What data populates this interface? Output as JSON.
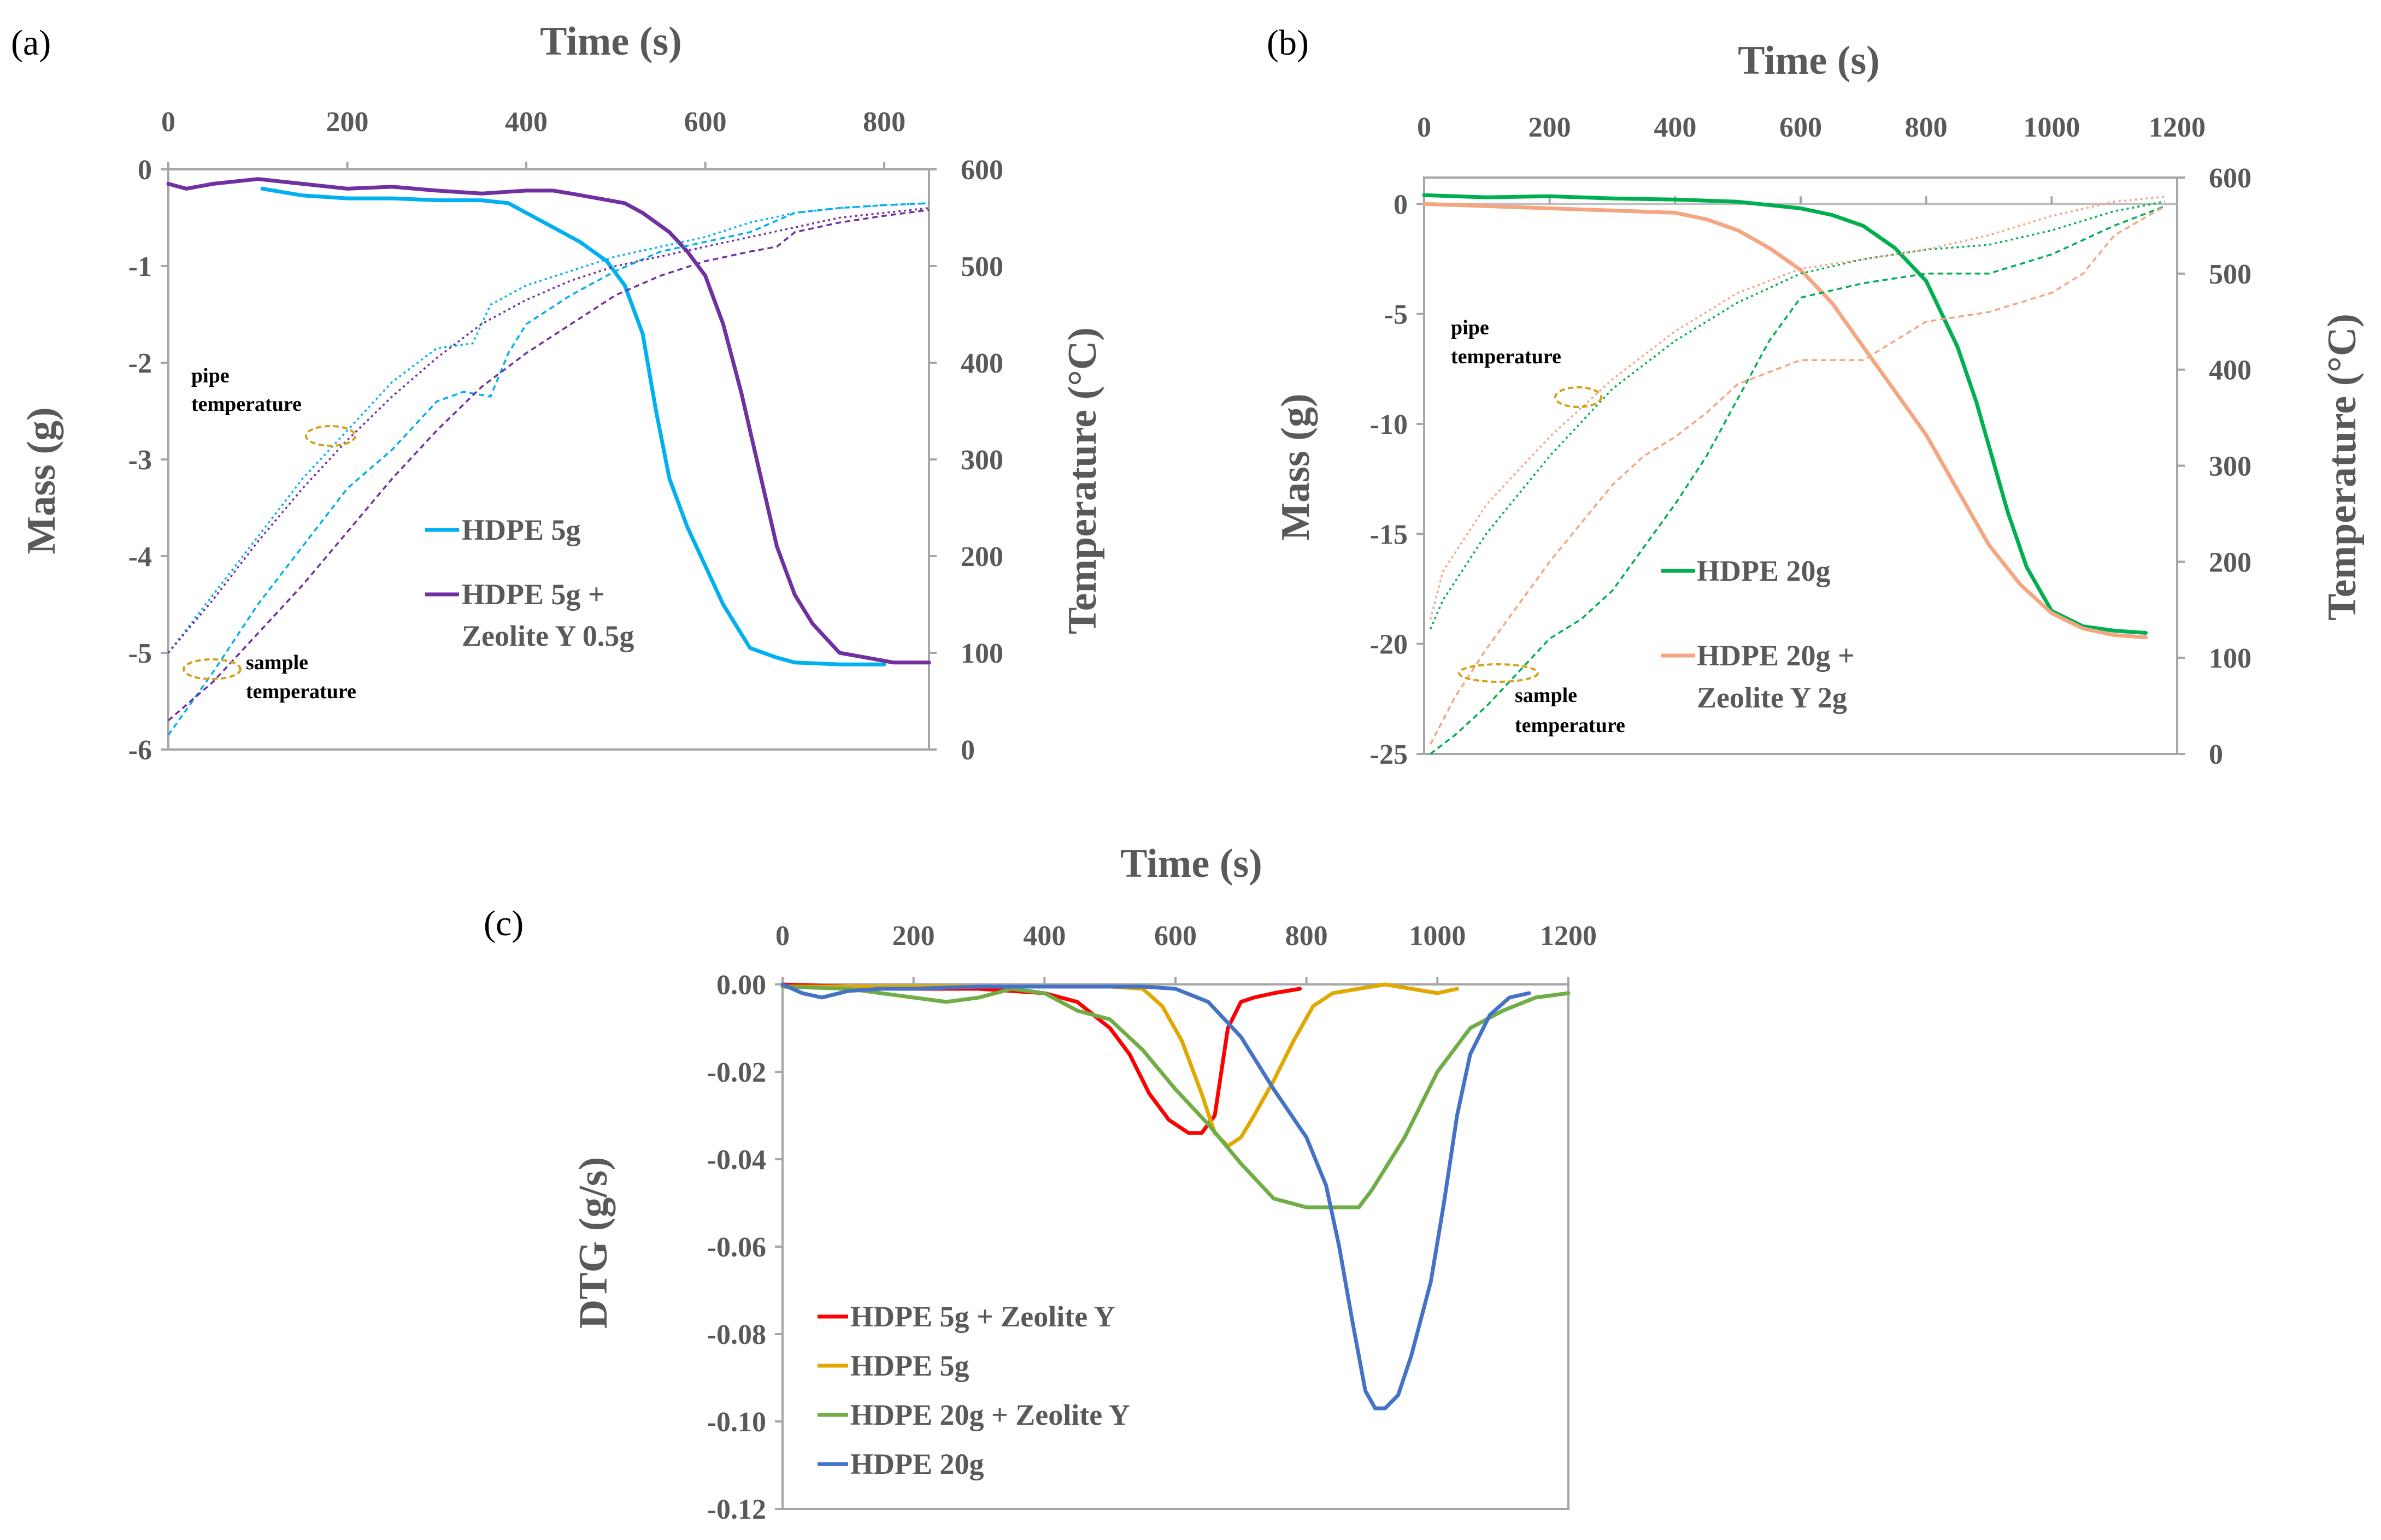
{
  "chart_data": [
    {
      "panel": "(a)",
      "type": "line",
      "xlabel": "Time (s)",
      "ylabel": "Mass (g)",
      "y2label": "Temperature (°C)",
      "xlim": [
        0,
        850
      ],
      "ylim": [
        -6,
        0
      ],
      "y2lim": [
        0,
        600
      ],
      "xticks": [
        0,
        200,
        400,
        600,
        800
      ],
      "yticks": [
        0,
        -1,
        -2,
        -3,
        -4,
        -5,
        -6
      ],
      "y2ticks": [
        600,
        500,
        400,
        300,
        200,
        100,
        0
      ],
      "x_axis_position": "top",
      "legend": [
        {
          "name": "HDPE 5g",
          "color": "#00b0f0"
        },
        {
          "name": "HDPE 5g +",
          "name_line2": "Zeolite Y 0.5g",
          "color": "#7030a0"
        }
      ],
      "annotations": [
        {
          "line1": "pipe",
          "line2": "temperature"
        },
        {
          "line1": "sample",
          "line2": "temperature"
        }
      ],
      "series": [
        {
          "name": "HDPE 5g",
          "axis": "left",
          "style": "solid",
          "color": "#00b0f0",
          "x": [
            105,
            150,
            200,
            250,
            300,
            350,
            380,
            400,
            430,
            460,
            490,
            510,
            530,
            545,
            560,
            580,
            600,
            620,
            650,
            680,
            700,
            750,
            800
          ],
          "y": [
            -0.2,
            -0.27,
            -0.3,
            -0.3,
            -0.32,
            -0.32,
            -0.35,
            -0.45,
            -0.6,
            -0.75,
            -0.95,
            -1.2,
            -1.7,
            -2.5,
            -3.2,
            -3.7,
            -4.1,
            -4.5,
            -4.95,
            -5.05,
            -5.1,
            -5.12,
            -5.12
          ]
        },
        {
          "name": "HDPE 5g + Zeolite Y 0.5g",
          "axis": "left",
          "style": "solid",
          "color": "#7030a0",
          "x": [
            0,
            20,
            50,
            100,
            150,
            200,
            250,
            300,
            350,
            400,
            430,
            450,
            480,
            510,
            530,
            560,
            580,
            600,
            620,
            640,
            660,
            680,
            700,
            720,
            750,
            780,
            810,
            850
          ],
          "y": [
            -0.15,
            -0.2,
            -0.15,
            -0.1,
            -0.15,
            -0.2,
            -0.18,
            -0.22,
            -0.25,
            -0.22,
            -0.22,
            -0.25,
            -0.3,
            -0.35,
            -0.45,
            -0.65,
            -0.85,
            -1.1,
            -1.6,
            -2.3,
            -3.1,
            -3.9,
            -4.4,
            -4.7,
            -5.0,
            -5.05,
            -5.1,
            -5.1
          ]
        },
        {
          "name": "HDPE 5g pipe temperature",
          "axis": "right",
          "style": "dotted",
          "color": "#00b0f0",
          "x": [
            0,
            50,
            100,
            150,
            200,
            250,
            300,
            340,
            360,
            380,
            400,
            450,
            500,
            550,
            600,
            650,
            700,
            750,
            800,
            850
          ],
          "y": [
            100,
            160,
            220,
            280,
            330,
            380,
            415,
            420,
            460,
            470,
            480,
            495,
            510,
            520,
            530,
            545,
            555,
            560,
            563,
            565
          ]
        },
        {
          "name": "HDPE 5g sample temperature",
          "axis": "right",
          "style": "dashed",
          "color": "#00b0f0",
          "x": [
            0,
            50,
            100,
            150,
            200,
            250,
            300,
            330,
            360,
            380,
            400,
            450,
            500,
            550,
            600,
            650,
            700,
            750,
            800,
            850
          ],
          "y": [
            15,
            80,
            150,
            210,
            270,
            310,
            360,
            370,
            365,
            410,
            440,
            470,
            495,
            515,
            525,
            535,
            555,
            560,
            563,
            565
          ]
        },
        {
          "name": "HDPE 5g + Zeolite Y pipe temperature",
          "axis": "right",
          "style": "dotted",
          "color": "#7030a0",
          "x": [
            0,
            50,
            100,
            150,
            200,
            250,
            300,
            350,
            400,
            450,
            500,
            550,
            600,
            650,
            700,
            750,
            800,
            850
          ],
          "y": [
            100,
            155,
            215,
            270,
            320,
            365,
            405,
            440,
            465,
            485,
            500,
            510,
            520,
            530,
            540,
            550,
            555,
            560
          ]
        },
        {
          "name": "HDPE 5g + Zeolite Y sample temperature",
          "axis": "right",
          "style": "dashed",
          "color": "#7030a0",
          "x": [
            0,
            50,
            100,
            150,
            200,
            250,
            300,
            350,
            400,
            450,
            500,
            550,
            600,
            650,
            680,
            700,
            750,
            800,
            850
          ],
          "y": [
            30,
            70,
            120,
            170,
            225,
            280,
            330,
            375,
            410,
            440,
            470,
            490,
            505,
            515,
            520,
            535,
            545,
            552,
            558
          ]
        }
      ]
    },
    {
      "panel": "(b)",
      "type": "line",
      "xlabel": "Time (s)",
      "ylabel": "Mass (g)",
      "y2label": "Temperature (°C)",
      "xlim": [
        0,
        1200
      ],
      "ylim": [
        -25,
        1.2
      ],
      "y2lim": [
        0,
        600
      ],
      "xticks": [
        0,
        200,
        400,
        600,
        800,
        1000,
        1200
      ],
      "yticks": [
        0,
        -5,
        -10,
        -15,
        -20,
        -25
      ],
      "y2ticks": [
        600,
        500,
        400,
        300,
        200,
        100,
        0
      ],
      "x_axis_position": "top",
      "legend": [
        {
          "name": "HDPE 20g",
          "color": "#00b050"
        },
        {
          "name": "HDPE 20g +",
          "name_line2": "Zeolite Y 2g",
          "color": "#f4a582"
        }
      ],
      "annotations": [
        {
          "line1": "pipe",
          "line2": "temperature"
        },
        {
          "line1": "sample",
          "line2": "temperature"
        }
      ],
      "series": [
        {
          "name": "HDPE 20g",
          "axis": "left",
          "style": "solid",
          "color": "#00b050",
          "x": [
            0,
            100,
            200,
            300,
            400,
            500,
            600,
            650,
            700,
            750,
            800,
            850,
            880,
            900,
            930,
            960,
            1000,
            1050,
            1100,
            1150
          ],
          "y": [
            0.4,
            0.3,
            0.35,
            0.25,
            0.2,
            0.1,
            -0.2,
            -0.5,
            -1.0,
            -2.0,
            -3.5,
            -6.5,
            -9.0,
            -11,
            -14,
            -16.5,
            -18.5,
            -19.2,
            -19.4,
            -19.5
          ]
        },
        {
          "name": "HDPE 20g + Zeolite Y 2g",
          "axis": "left",
          "style": "solid",
          "color": "#f4a582",
          "x": [
            0,
            100,
            200,
            300,
            400,
            450,
            500,
            550,
            600,
            650,
            700,
            750,
            800,
            850,
            900,
            950,
            1000,
            1050,
            1100,
            1150
          ],
          "y": [
            0,
            -0.1,
            -0.2,
            -0.3,
            -0.4,
            -0.7,
            -1.2,
            -2.0,
            -3.0,
            -4.5,
            -6.5,
            -8.5,
            -10.5,
            -13,
            -15.5,
            -17.3,
            -18.6,
            -19.3,
            -19.6,
            -19.7
          ]
        },
        {
          "name": "HDPE 20g pipe temperature",
          "axis": "right",
          "style": "dotted",
          "color": "#00b050",
          "x": [
            10,
            30,
            100,
            200,
            300,
            400,
            500,
            600,
            700,
            800,
            900,
            1000,
            1100,
            1180
          ],
          "y": [
            130,
            160,
            230,
            310,
            380,
            430,
            470,
            500,
            515,
            525,
            530,
            545,
            565,
            575
          ]
        },
        {
          "name": "HDPE 20g sample temperature",
          "axis": "right",
          "style": "dashed",
          "color": "#00b050",
          "x": [
            10,
            50,
            100,
            200,
            250,
            300,
            400,
            450,
            500,
            550,
            600,
            700,
            800,
            900,
            1000,
            1100,
            1180
          ],
          "y": [
            0,
            20,
            50,
            120,
            140,
            170,
            260,
            310,
            370,
            430,
            475,
            490,
            500,
            500,
            520,
            550,
            570
          ]
        },
        {
          "name": "HDPE 20g + Zeolite Y pipe temperature",
          "axis": "right",
          "style": "dotted",
          "color": "#f4a582",
          "x": [
            10,
            30,
            100,
            200,
            300,
            400,
            500,
            600,
            700,
            800,
            900,
            1000,
            1100,
            1180
          ],
          "y": [
            140,
            190,
            260,
            330,
            390,
            440,
            480,
            505,
            515,
            525,
            540,
            560,
            575,
            580
          ]
        },
        {
          "name": "HDPE 20g + Zeolite Y sample temperature",
          "axis": "right",
          "style": "dashed",
          "color": "#f4a582",
          "x": [
            10,
            50,
            100,
            200,
            300,
            350,
            400,
            450,
            500,
            600,
            700,
            750,
            800,
            900,
            1000,
            1050,
            1100,
            1180
          ],
          "y": [
            10,
            60,
            110,
            200,
            280,
            310,
            330,
            355,
            385,
            410,
            410,
            430,
            450,
            460,
            480,
            500,
            540,
            570
          ]
        }
      ]
    },
    {
      "panel": "(c)",
      "type": "line",
      "xlabel": "Time (s)",
      "ylabel": "DTG (g/s)",
      "xlim": [
        0,
        1200
      ],
      "ylim": [
        -0.12,
        0
      ],
      "xticks": [
        0,
        200,
        400,
        600,
        800,
        1000,
        1200
      ],
      "yticks": [
        "0.00",
        "-0.02",
        "-0.04",
        "-0.06",
        "-0.08",
        "-0.10",
        "-0.12"
      ],
      "x_axis_position": "top",
      "legend_position": "bottom-left",
      "series": [
        {
          "name": "HDPE 5g + Zeolite Y",
          "color": "#ff0000",
          "x": [
            0,
            100,
            200,
            300,
            400,
            450,
            500,
            530,
            560,
            590,
            620,
            640,
            660,
            670,
            680,
            700,
            720,
            750,
            790
          ],
          "y": [
            0,
            -0.0005,
            -0.001,
            -0.001,
            -0.002,
            -0.004,
            -0.01,
            -0.016,
            -0.025,
            -0.031,
            -0.034,
            -0.034,
            -0.03,
            -0.02,
            -0.01,
            -0.004,
            -0.003,
            -0.002,
            -0.001
          ]
        },
        {
          "name": "HDPE 5g",
          "color": "#e0a800",
          "x": [
            0,
            200,
            400,
            500,
            550,
            580,
            610,
            640,
            660,
            680,
            700,
            720,
            750,
            780,
            810,
            840,
            880,
            920,
            960,
            1000,
            1030
          ],
          "y": [
            -0.0005,
            -0.0005,
            -0.0005,
            -0.0005,
            -0.001,
            -0.005,
            -0.013,
            -0.025,
            -0.034,
            -0.037,
            -0.035,
            -0.03,
            -0.022,
            -0.013,
            -0.005,
            -0.002,
            -0.001,
            0,
            -0.001,
            -0.002,
            -0.001
          ]
        },
        {
          "name": "HDPE 20g + Zeolite Y",
          "color": "#70ad47",
          "x": [
            0,
            100,
            200,
            250,
            300,
            350,
            400,
            450,
            500,
            550,
            600,
            650,
            700,
            750,
            800,
            850,
            880,
            900,
            950,
            1000,
            1050,
            1100,
            1150,
            1200
          ],
          "y": [
            -0.0005,
            -0.001,
            -0.003,
            -0.004,
            -0.003,
            -0.001,
            -0.002,
            -0.006,
            -0.008,
            -0.015,
            -0.024,
            -0.032,
            -0.041,
            -0.049,
            -0.051,
            -0.051,
            -0.051,
            -0.047,
            -0.035,
            -0.02,
            -0.01,
            -0.006,
            -0.003,
            -0.002
          ]
        },
        {
          "name": "HDPE 20g",
          "color": "#4472c4",
          "x": [
            0,
            30,
            60,
            100,
            150,
            200,
            300,
            400,
            500,
            550,
            600,
            650,
            700,
            750,
            800,
            830,
            850,
            870,
            890,
            905,
            920,
            940,
            960,
            990,
            1010,
            1030,
            1050,
            1080,
            1110,
            1140
          ],
          "y": [
            0,
            -0.002,
            -0.003,
            -0.0015,
            -0.001,
            -0.001,
            -0.0005,
            -0.0005,
            -0.0005,
            -0.0005,
            -0.001,
            -0.004,
            -0.012,
            -0.024,
            -0.035,
            -0.046,
            -0.06,
            -0.077,
            -0.093,
            -0.097,
            -0.097,
            -0.094,
            -0.085,
            -0.068,
            -0.05,
            -0.03,
            -0.016,
            -0.007,
            -0.003,
            -0.002
          ]
        }
      ]
    }
  ]
}
